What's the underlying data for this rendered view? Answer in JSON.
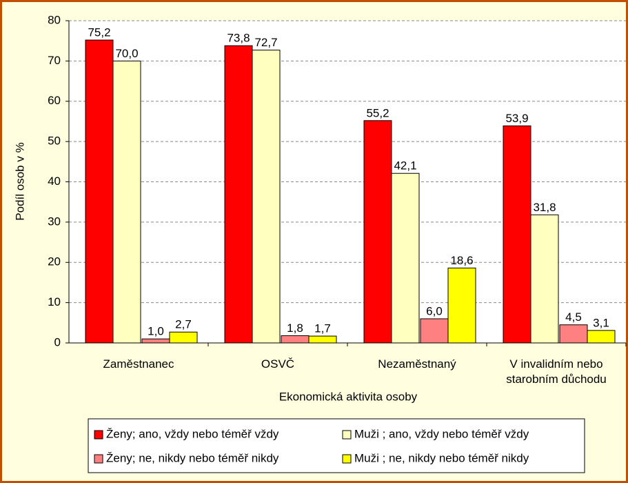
{
  "chart_data": {
    "type": "bar",
    "categories": [
      "Zaměstnanec",
      "OSVČ",
      "Nezaměstnaný",
      "V invalidním nebo starobním důchodu"
    ],
    "series": [
      {
        "name": "Ženy; ano, vždy nebo téměř vždy",
        "color": "#ff0000",
        "values": [
          75.2,
          73.8,
          55.2,
          53.9
        ],
        "value_labels": [
          "75,2",
          "73,8",
          "55,2",
          "53,9"
        ]
      },
      {
        "name": "Muži ; ano, vždy nebo téměř vždy",
        "color": "#ffffc0",
        "values": [
          70.0,
          72.7,
          42.1,
          31.8
        ],
        "value_labels": [
          "70,0",
          "72,7",
          "42,1",
          "31,8"
        ]
      },
      {
        "name": "Ženy; ne, nikdy nebo téměř nikdy",
        "color": "#ff8080",
        "values": [
          1.0,
          1.8,
          6.0,
          4.5
        ],
        "value_labels": [
          "1,0",
          "1,8",
          "6,0",
          "4,5"
        ]
      },
      {
        "name": "Muži ; ne, nikdy nebo téměř nikdy",
        "color": "#ffff00",
        "values": [
          2.7,
          1.7,
          18.6,
          3.1
        ],
        "value_labels": [
          "2,7",
          "1,7",
          "18,6",
          "3,1"
        ]
      }
    ],
    "xlabel": "Ekonomická aktivita osoby",
    "ylabel": "Podíl osob v %",
    "ylim": [
      0,
      80
    ],
    "yticks": [
      0,
      10,
      20,
      30,
      40,
      50,
      60,
      70,
      80
    ],
    "grid": true,
    "legend": "bottom"
  }
}
